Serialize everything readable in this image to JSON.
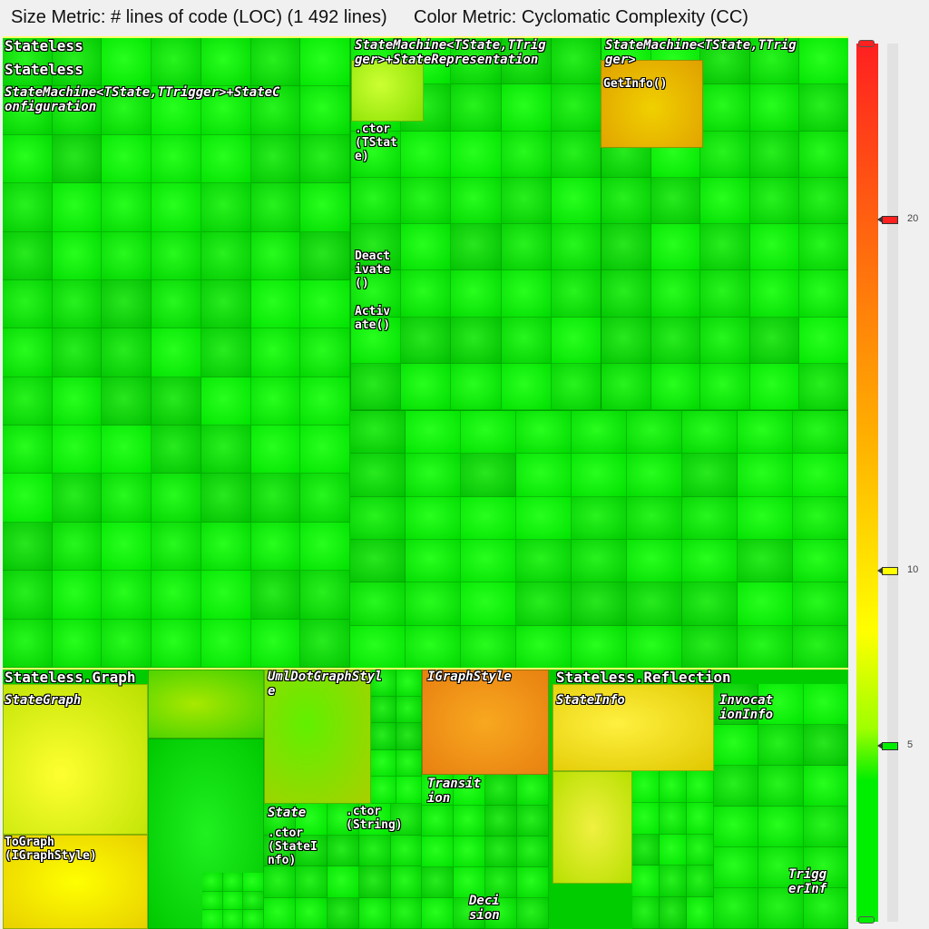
{
  "header": {
    "size_metric": "Size Metric: # lines of code (LOC) (1 492 lines)",
    "color_metric": "Color Metric: Cyclomatic Complexity (CC)"
  },
  "treemap": {
    "stateless": {
      "namespace": "Stateless",
      "assembly": "Stateless",
      "class_config": "StateMachine<TState,TTrigger>+StateC\nonfiguration",
      "class_representation": "StateMachine<TState,TTrig\nger>+StateRepresentation",
      "class_machine": "StateMachine<TState,TTrig\nger>",
      "method_ctor": ".ctor\n(TStat\ne)",
      "method_deactivate": "Deact\nivate\n()",
      "method_activate": "Activ\nate()",
      "method_getinfo": "GetInfo()"
    },
    "graph": {
      "namespace": "Stateless.Graph",
      "class_stategraph": "StateGraph",
      "class_umldot": "UmlDotGraphStyl\ne",
      "class_igraphstyle": "IGraphStyle",
      "method_tograph": "ToGraph\n(IGraphStyle)",
      "class_state": "State",
      "method_ctor_stateinfo": ".ctor\n(StateI\nnfo)",
      "method_ctor_string": ".ctor\n(String)",
      "class_transition": "Transit\nion",
      "class_decision": "Deci\nsion"
    },
    "reflection": {
      "namespace": "Stateless.Reflection",
      "class_stateinfo": "StateInfo",
      "class_invocationinfo": "Invocat\nionInfo",
      "class_triggerinfo": "Trigg\nerInf"
    }
  },
  "legend": {
    "ticks": [
      "20",
      "10",
      "5"
    ],
    "marker_colors": [
      "#ff2020",
      "#ffff00",
      "#00ee00"
    ],
    "range_max": 25,
    "tick_values": [
      20,
      10,
      5
    ]
  },
  "colors": {
    "low": "#00ee00",
    "mid": "#ffff00",
    "high": "#ff2020",
    "orange": "#f4a020"
  }
}
